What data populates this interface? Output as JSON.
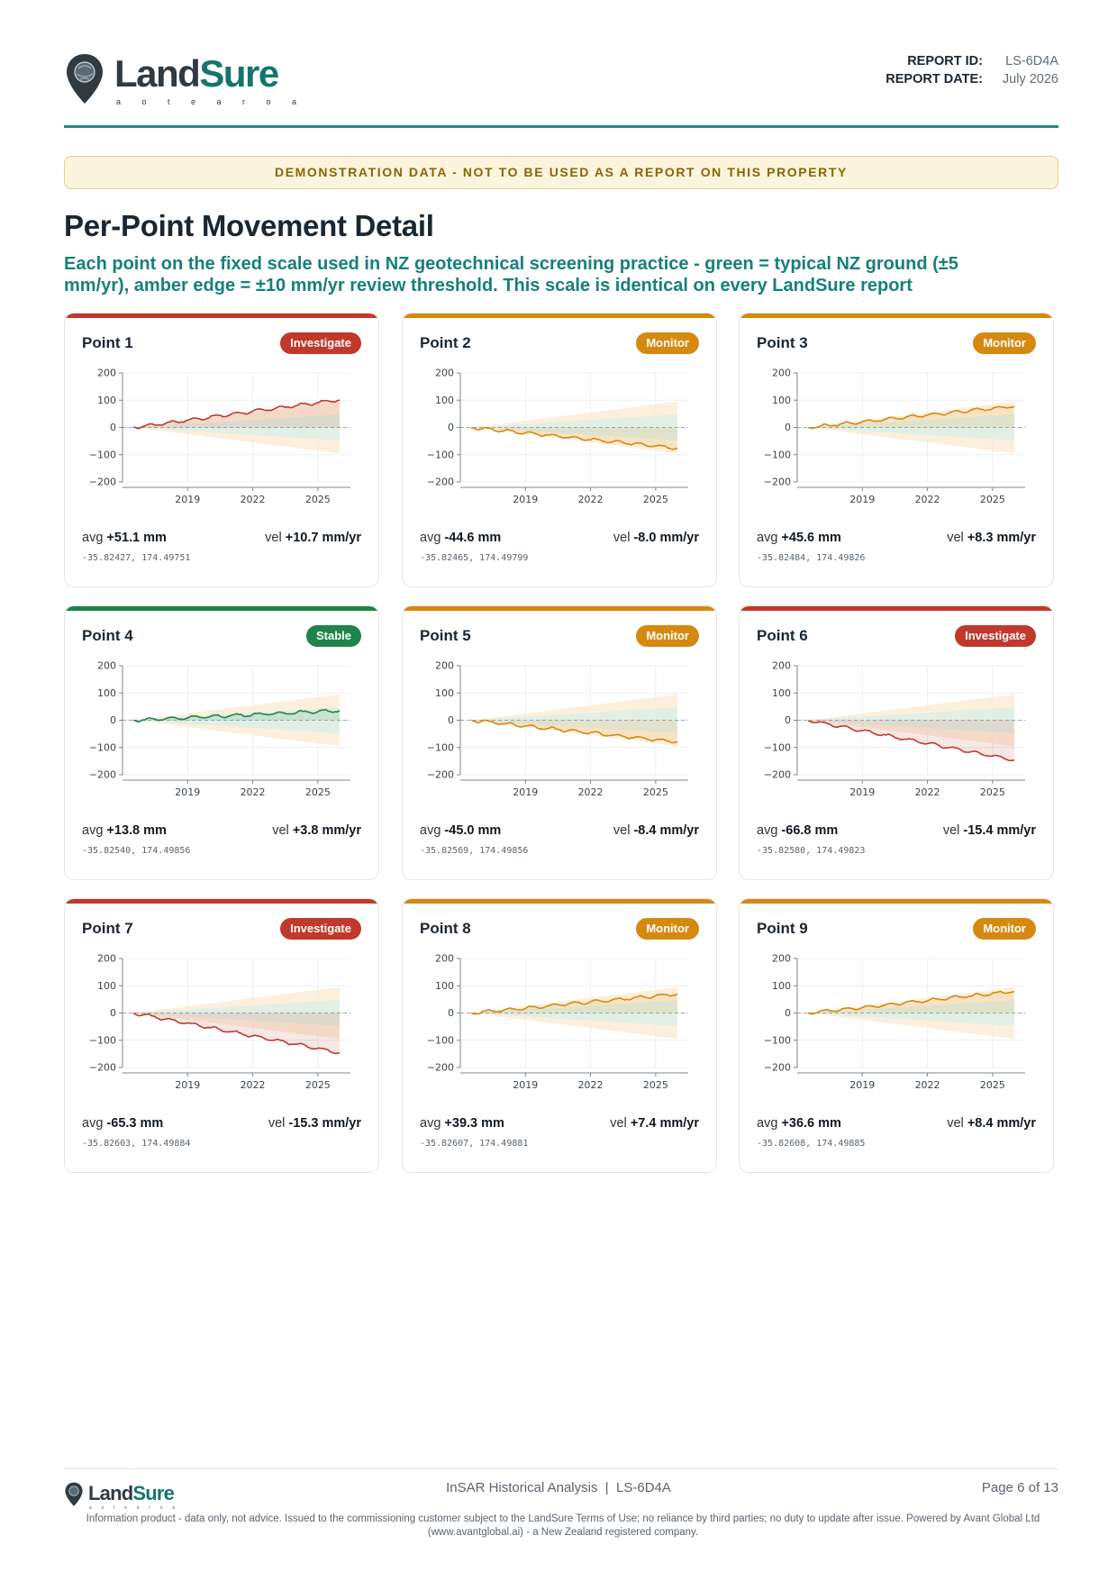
{
  "header": {
    "logo": {
      "word1": "Land",
      "word2": "Sure",
      "tagline": [
        "a",
        "o",
        "t",
        "e",
        "a",
        "r",
        "o",
        "a"
      ]
    },
    "report_id_label": "REPORT ID:",
    "report_id": "LS-6D4A",
    "report_date_label": "REPORT DATE:",
    "report_date": "July 2026"
  },
  "colors": {
    "brand_teal": "#16756a",
    "investigate": "#c0392b",
    "monitor": "#d68910",
    "stable": "#1e8449",
    "band_green": "#dcefe6",
    "band_amber": "#fbead0"
  },
  "banner": "DEMONSTRATION DATA - NOT TO BE USED AS A REPORT ON THIS PROPERTY",
  "page": {
    "title": "Per-Point Movement Detail",
    "subtitle": "Each point on the fixed scale used in NZ geotechnical screening practice - green = typical NZ ground (±5 mm/yr), amber edge = ±10 mm/yr review threshold. This scale is identical on every LandSure report"
  },
  "points": [
    {
      "name": "Point 1",
      "status": "Investigate",
      "status_key": "investigate",
      "avg_label": "avg",
      "avg": "+51.1 mm",
      "vel_label": "vel",
      "vel": "+10.7 mm/yr",
      "coords": "-35.82427, 174.49751",
      "velocity": 10.7
    },
    {
      "name": "Point 2",
      "status": "Monitor",
      "status_key": "monitor",
      "avg_label": "avg",
      "avg": "-44.6 mm",
      "vel_label": "vel",
      "vel": "-8.0 mm/yr",
      "coords": "-35.82465, 174.49799",
      "velocity": -8.0
    },
    {
      "name": "Point 3",
      "status": "Monitor",
      "status_key": "monitor",
      "avg_label": "avg",
      "avg": "+45.6 mm",
      "vel_label": "vel",
      "vel": "+8.3 mm/yr",
      "coords": "-35.82484, 174.49826",
      "velocity": 8.3
    },
    {
      "name": "Point 4",
      "status": "Stable",
      "status_key": "stable",
      "avg_label": "avg",
      "avg": "+13.8 mm",
      "vel_label": "vel",
      "vel": "+3.8 mm/yr",
      "coords": "-35.82540, 174.49856",
      "velocity": 3.8
    },
    {
      "name": "Point 5",
      "status": "Monitor",
      "status_key": "monitor",
      "avg_label": "avg",
      "avg": "-45.0 mm",
      "vel_label": "vel",
      "vel": "-8.4 mm/yr",
      "coords": "-35.82569, 174.49856",
      "velocity": -8.4
    },
    {
      "name": "Point 6",
      "status": "Investigate",
      "status_key": "investigate",
      "avg_label": "avg",
      "avg": "-66.8 mm",
      "vel_label": "vel",
      "vel": "-15.4 mm/yr",
      "coords": "-35.82580, 174.49823",
      "velocity": -15.4
    },
    {
      "name": "Point 7",
      "status": "Investigate",
      "status_key": "investigate",
      "avg_label": "avg",
      "avg": "-65.3 mm",
      "vel_label": "vel",
      "vel": "-15.3 mm/yr",
      "coords": "-35.82603, 174.49884",
      "velocity": -15.3
    },
    {
      "name": "Point 8",
      "status": "Monitor",
      "status_key": "monitor",
      "avg_label": "avg",
      "avg": "+39.3 mm",
      "vel_label": "vel",
      "vel": "+7.4 mm/yr",
      "coords": "-35.82607, 174.49881",
      "velocity": 7.4
    },
    {
      "name": "Point 9",
      "status": "Monitor",
      "status_key": "monitor",
      "avg_label": "avg",
      "avg": "+36.6 mm",
      "vel_label": "vel",
      "vel": "+8.4 mm/yr",
      "coords": "-35.82608, 174.49885",
      "velocity": 8.4
    }
  ],
  "chart_data": {
    "type": "line",
    "x_range": [
      2016,
      2026.5
    ],
    "ylim": [
      -200,
      200
    ],
    "y_ticks": [
      200,
      100,
      0,
      -100,
      -200
    ],
    "y_tick_labels": [
      "200",
      "100",
      "0",
      "−100",
      "−200"
    ],
    "x_ticks": [
      2019,
      2022,
      2025
    ],
    "x_tick_labels": [
      "2019",
      "2022",
      "2025"
    ],
    "band_green_rate_mm_per_yr": 5,
    "band_amber_rate_mm_per_yr": 10,
    "series_start_year": 2016.5,
    "series_end_year": 2026,
    "grid": true
  },
  "footer": {
    "logo_word1": "Land",
    "logo_word2": "Sure",
    "logo_tagline": [
      "a",
      "o",
      "t",
      "e",
      "a",
      "r",
      "o",
      "a"
    ],
    "center": "InSAR Historical Analysis  |  LS-6D4A",
    "page": "Page 6 of 13",
    "disclaimer": "Information product - data only, not advice. Issued to the commissioning customer subject to the LandSure Terms of Use; no reliance by third parties; no duty to update after issue. Powered by Avant Global Ltd (www.avantglobal.ai) - a New Zealand registered company."
  }
}
